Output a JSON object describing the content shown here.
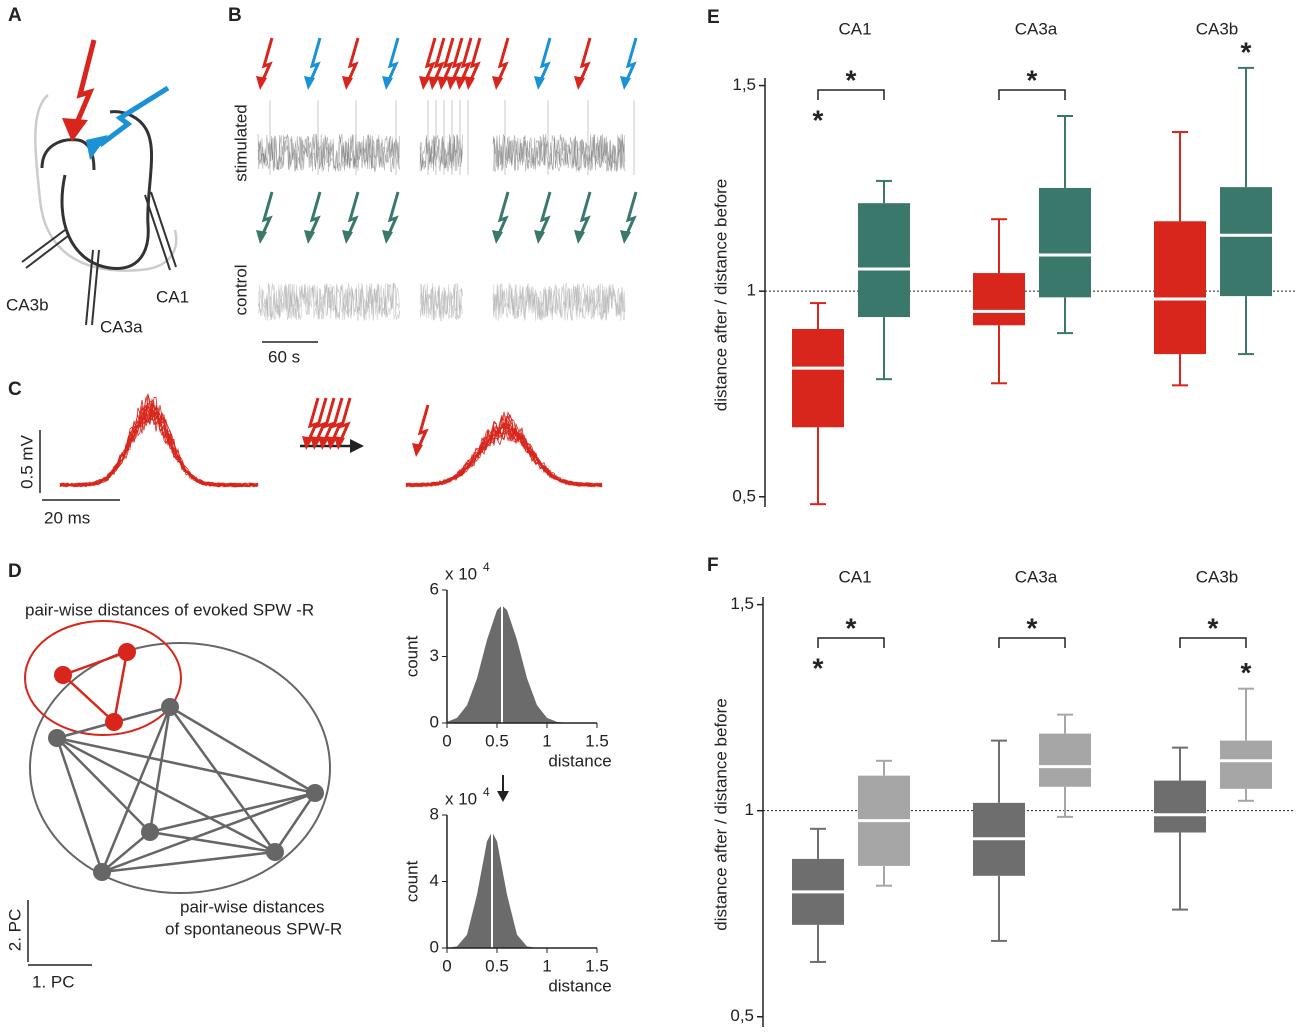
{
  "panels": {
    "a": {
      "label": "A",
      "ca3b": "CA3b",
      "ca3a": "CA3a",
      "ca1": "CA1"
    },
    "b": {
      "label": "B",
      "stimulated": "stimulated",
      "control": "control",
      "scale": "60 s"
    },
    "c": {
      "label": "C",
      "vscale": "0.5 mV",
      "hscale": "20 ms"
    },
    "d": {
      "label": "D",
      "evoked": "pair-wise distances of evoked SPW -R",
      "spont1": "pair-wise distances",
      "spont2": "of spontaneous SPW-R",
      "pc2": "2. PC",
      "pc1": "1. PC"
    }
  },
  "chart_data": [
    {
      "type": "box",
      "label": "E",
      "categories": [
        "CA1",
        "CA3a",
        "CA3b"
      ],
      "ylabel": "distance after / distance before",
      "ylim": [
        0.48,
        1.55
      ],
      "yticks": [
        {
          "value": 0.5,
          "label": "0,5"
        },
        1,
        {
          "value": 1.5,
          "label": "1,5"
        }
      ],
      "hline": 1,
      "brackets": [
        "*",
        "*",
        null
      ],
      "series": [
        {
          "color": "#d8261c",
          "min": [
            0.482,
            0.776,
            0.771
          ],
          "q1": [
            0.669,
            0.917,
            0.847
          ],
          "median": [
            0.813,
            0.951,
            0.981
          ],
          "q3": [
            0.908,
            1.044,
            1.17
          ],
          "max": [
            0.971,
            1.175,
            1.387
          ],
          "stars": [
            "*",
            null,
            null
          ]
        },
        {
          "color": "#3a786b",
          "min": [
            0.786,
            0.898,
            0.847
          ],
          "q1": [
            0.937,
            0.985,
            0.988
          ],
          "median": [
            1.054,
            1.088,
            1.136
          ],
          "q3": [
            1.214,
            1.251,
            1.253
          ],
          "max": [
            1.268,
            1.426,
            1.543
          ],
          "stars": [
            null,
            null,
            "*"
          ]
        }
      ]
    },
    {
      "type": "box",
      "label": "F",
      "categories": [
        "CA1",
        "CA3a",
        "CA3b"
      ],
      "ylabel": "distance after / distance before",
      "ylim": [
        0.48,
        1.55
      ],
      "yticks": [
        {
          "value": 0.5,
          "label": "0,5"
        },
        1,
        {
          "value": 1.5,
          "label": "1,5"
        }
      ],
      "hline": 1,
      "brackets": [
        "*",
        "*",
        "*"
      ],
      "series": [
        {
          "color": "#6e6e6e",
          "min": [
            0.633,
            0.684,
            0.76
          ],
          "q1": [
            0.723,
            0.842,
            0.947
          ],
          "median": [
            0.803,
            0.932,
            0.99
          ],
          "q3": [
            0.883,
            1.019,
            1.073
          ],
          "max": [
            0.956,
            1.17,
            1.153
          ],
          "stars": [
            "*",
            null,
            null
          ]
        },
        {
          "color": "#a6a6a6",
          "min": [
            0.818,
            0.985,
            1.024
          ],
          "q1": [
            0.866,
            1.058,
            1.053
          ],
          "median": [
            0.976,
            1.107,
            1.121
          ],
          "q3": [
            1.085,
            1.187,
            1.17
          ],
          "max": [
            1.121,
            1.233,
            1.296
          ],
          "stars": [
            null,
            null,
            "*"
          ]
        }
      ]
    },
    {
      "type": "area",
      "color": "#6b6b6b",
      "x": [
        0,
        0.1,
        0.2,
        0.3,
        0.4,
        0.5,
        0.55,
        0.6,
        0.7,
        0.8,
        0.9,
        1.0,
        1.1,
        1.2
      ],
      "values": [
        0.05,
        0.23,
        0.8,
        2.02,
        3.75,
        5.1,
        5.3,
        5.1,
        3.75,
        2.02,
        0.8,
        0.23,
        0.05,
        0.01
      ],
      "mean": 0.55,
      "xlim": [
        0,
        1.5
      ],
      "ylim": [
        0,
        6
      ],
      "xticks": [
        0,
        0.5,
        1,
        1.5
      ],
      "yticks": [
        0,
        3,
        6
      ],
      "xlabel": "distance",
      "ylabel": "count",
      "multiplier": "x 10",
      "exponent": 4
    },
    {
      "type": "area",
      "color": "#6b6b6b",
      "x": [
        0,
        0.1,
        0.2,
        0.3,
        0.4,
        0.45,
        0.5,
        0.6,
        0.7,
        0.8,
        0.9
      ],
      "values": [
        0.01,
        0.1,
        0.8,
        3.21,
        6.42,
        7,
        6.42,
        3.21,
        0.8,
        0.1,
        0.01
      ],
      "mean": 0.45,
      "xlim": [
        0,
        1.5
      ],
      "ylim": [
        0,
        8
      ],
      "xticks": [
        0,
        0.5,
        1,
        1.5
      ],
      "yticks": [
        0,
        4,
        8
      ],
      "xlabel": "distance",
      "ylabel": "count",
      "multiplier": "x 10",
      "exponent": 4
    }
  ]
}
